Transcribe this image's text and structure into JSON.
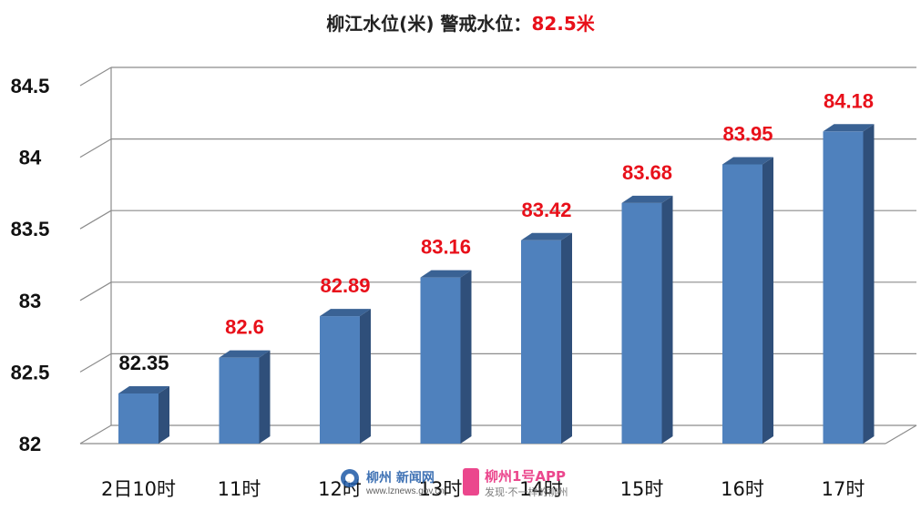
{
  "chart_data": {
    "type": "bar",
    "title": "柳江水位(米) 警戒水位：",
    "warning_value_label": "82.5米",
    "categories": [
      "2日10时",
      "11时",
      "12时",
      "13时",
      "14时",
      "15时",
      "16时",
      "17时"
    ],
    "values": [
      82.35,
      82.6,
      82.89,
      83.16,
      83.42,
      83.68,
      83.95,
      84.18
    ],
    "data_labels": [
      "82.35",
      "82.6",
      "82.89",
      "83.16",
      "83.42",
      "83.68",
      "83.95",
      "84.18"
    ],
    "data_label_colors": [
      "#111111",
      "#e8101a",
      "#e8101a",
      "#e8101a",
      "#e8101a",
      "#e8101a",
      "#e8101a",
      "#e8101a"
    ],
    "yticks": [
      82,
      82.5,
      83,
      83.5,
      84,
      84.5
    ],
    "ytick_labels": [
      "82",
      "82.5",
      "83",
      "83.5",
      "84",
      "84.5"
    ],
    "ylim": [
      82,
      84.5
    ],
    "grid": true,
    "bar_color": "#4f81bd",
    "bar_side_color": "#2f4f7a",
    "bar_top_color": "#3a6294",
    "style": "3d"
  },
  "watermark": {
    "brand1": "柳州 新闻网",
    "url": "www.lznews.gov.cn",
    "brand2": "柳州1号APP",
    "slogan": "发现·不一样的柳州"
  }
}
